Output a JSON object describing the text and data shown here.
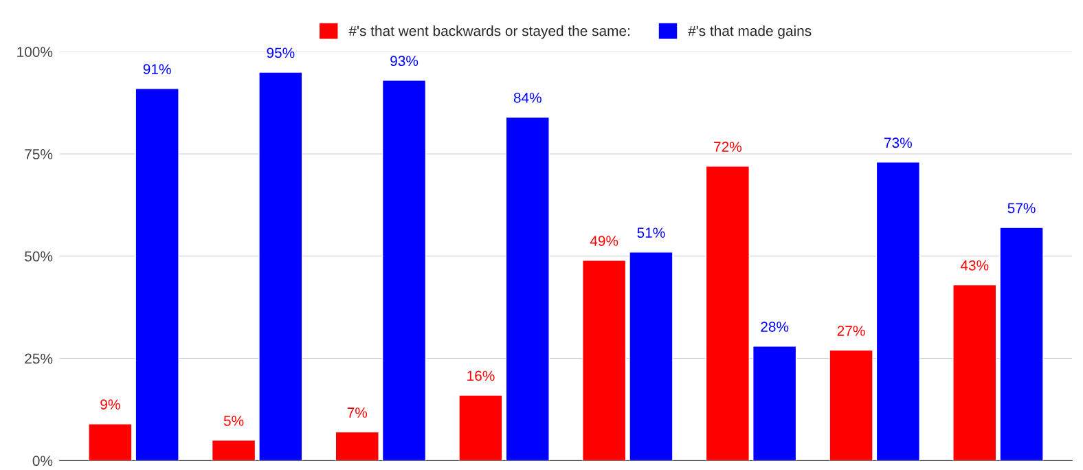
{
  "chart_data": {
    "type": "bar",
    "categories": [
      null,
      null,
      null,
      null,
      null,
      null,
      null,
      null
    ],
    "series": [
      {
        "name": "#'s that went backwards or stayed the same:",
        "color": "#ff0000",
        "values": [
          9,
          5,
          7,
          16,
          49,
          72,
          27,
          43
        ],
        "value_labels": [
          "9%",
          "5%",
          "7%",
          "16%",
          "49%",
          "72%",
          "27%",
          "43%"
        ]
      },
      {
        "name": "#'s that made gains",
        "color": "#0000ff",
        "values": [
          91,
          95,
          93,
          84,
          51,
          28,
          73,
          57
        ],
        "value_labels": [
          "91%",
          "95%",
          "93%",
          "84%",
          "51%",
          "28%",
          "73%",
          "57%"
        ]
      }
    ],
    "ylim": [
      0,
      100
    ],
    "yticks": [
      {
        "value": 0,
        "label": "0%"
      },
      {
        "value": 25,
        "label": "25%"
      },
      {
        "value": 50,
        "label": "50%"
      },
      {
        "value": 75,
        "label": "75%"
      },
      {
        "value": 100,
        "label": "100%"
      }
    ],
    "grid": "y",
    "legend": "top"
  }
}
